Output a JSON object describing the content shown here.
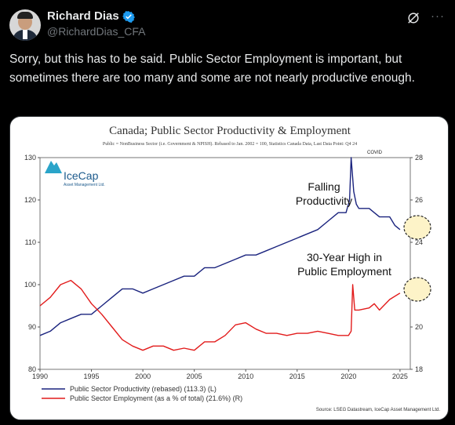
{
  "author": {
    "name": "Richard Dias",
    "handle": "@RichardDias_CFA",
    "verified_color": "#1d9bf0"
  },
  "actions": {
    "grok_icon": "grok-icon",
    "more_label": "···"
  },
  "tweet": {
    "text": "Sorry, but this has to be said. Public Sector Employment is important, but sometimes there are too many and some are not nearly productive enough."
  },
  "chart_data": {
    "type": "line",
    "title": "Canada; Public Sector Productivity & Employment",
    "subtitle": "Public = NonBusiness Sector (i.e. Government & NPISH). Rebased to Jan. 2002 = 100, Statistics Canada Data, Last Data Point: Q4 24",
    "logo_text": "IceCap",
    "logo_subtext": "Asset Management Ltd.",
    "x_ticks": [
      "1990",
      "1995",
      "2000",
      "2005",
      "2010",
      "2015",
      "2020",
      "2025"
    ],
    "x_range": [
      1990,
      2026
    ],
    "y_left_ticks": [
      "80",
      "90",
      "100",
      "110",
      "120",
      "130"
    ],
    "y_left_range": [
      80,
      130
    ],
    "y_right_ticks": [
      "18",
      "20",
      "22",
      "24",
      "26",
      "28"
    ],
    "y_right_range": [
      18,
      28
    ],
    "annotations": {
      "covid": "COVID",
      "falling": [
        "Falling",
        "Productivity"
      ],
      "high": [
        "30-Year High in",
        "Public Employment"
      ]
    },
    "series": [
      {
        "name": "Public Sector Productivity (rebased) (113.3) (L)",
        "color": "#1a237e",
        "axis": "left",
        "x": [
          1990,
          1991,
          1992,
          1993,
          1994,
          1995,
          1996,
          1997,
          1998,
          1999,
          2000,
          2001,
          2002,
          2003,
          2004,
          2005,
          2006,
          2007,
          2008,
          2009,
          2010,
          2011,
          2012,
          2013,
          2014,
          2015,
          2016,
          2017,
          2018,
          2019,
          2019.75,
          2020.1,
          2020.25,
          2020.5,
          2020.75,
          2021,
          2021.5,
          2022,
          2022.5,
          2023,
          2023.5,
          2024,
          2024.5,
          2025
        ],
        "y": [
          88,
          89,
          91,
          92,
          93,
          93,
          95,
          97,
          99,
          99,
          98,
          99,
          100,
          101,
          102,
          102,
          104,
          104,
          105,
          106,
          107,
          107,
          108,
          109,
          110,
          111,
          112,
          113,
          115,
          117,
          117,
          120,
          130,
          122,
          119,
          118,
          118,
          118,
          117,
          116,
          116,
          116,
          114,
          113
        ]
      },
      {
        "name": "Public Sector Employment (as a % of total) (21.6%) (R)",
        "color": "#e21b1b",
        "axis": "right",
        "x": [
          1990,
          1991,
          1992,
          1993,
          1994,
          1995,
          1996,
          1997,
          1998,
          1999,
          2000,
          2001,
          2002,
          2003,
          2004,
          2005,
          2006,
          2007,
          2008,
          2009,
          2010,
          2011,
          2012,
          2013,
          2014,
          2015,
          2016,
          2017,
          2018,
          2019,
          2020,
          2020.25,
          2020.4,
          2020.6,
          2021,
          2022,
          2022.5,
          2023,
          2024,
          2025
        ],
        "y": [
          21.0,
          21.4,
          22.0,
          22.2,
          21.8,
          21.1,
          20.6,
          20.0,
          19.4,
          19.1,
          18.9,
          19.1,
          19.1,
          18.9,
          19.0,
          18.9,
          19.3,
          19.3,
          19.6,
          20.1,
          20.2,
          19.9,
          19.7,
          19.7,
          19.6,
          19.7,
          19.7,
          19.8,
          19.7,
          19.6,
          19.6,
          19.8,
          22.0,
          20.8,
          20.8,
          20.9,
          21.1,
          20.8,
          21.3,
          21.6
        ]
      }
    ],
    "source": "Source: LSEG Datastream, IceCap Asset Management Ltd."
  }
}
